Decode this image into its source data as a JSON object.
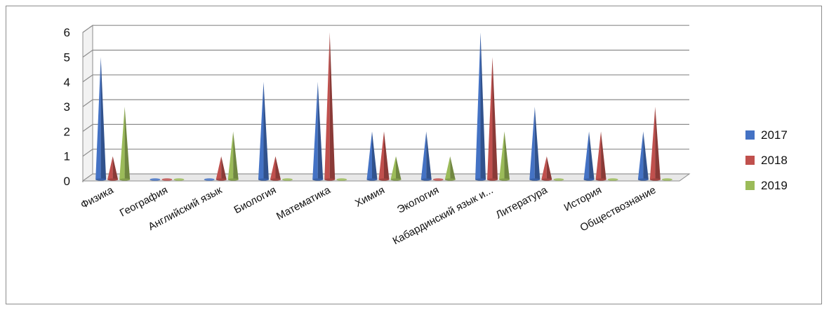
{
  "chart_data": {
    "type": "bar",
    "style": "3d-cone",
    "categories": [
      "Физика",
      "География",
      "Английский язык",
      "Биология",
      "Математика",
      "Химия",
      "Экология",
      "Кабардинский язык и...",
      "Литература",
      "История",
      "Обществознание"
    ],
    "series": [
      {
        "name": "2017",
        "color": "#4472c4",
        "values": [
          5,
          0,
          0,
          4,
          4,
          2,
          2,
          6,
          3,
          2,
          2
        ]
      },
      {
        "name": "2018",
        "color": "#c0504d",
        "values": [
          1,
          0,
          1,
          1,
          6,
          2,
          0,
          5,
          1,
          2,
          3
        ]
      },
      {
        "name": "2019",
        "color": "#9bbb59",
        "values": [
          3,
          0,
          2,
          0,
          0,
          1,
          1,
          2,
          0,
          0,
          0
        ]
      }
    ],
    "ylim": [
      0,
      6
    ],
    "yticks": [
      0,
      1,
      2,
      3,
      4,
      5,
      6
    ],
    "grid": true,
    "legend": "right"
  }
}
